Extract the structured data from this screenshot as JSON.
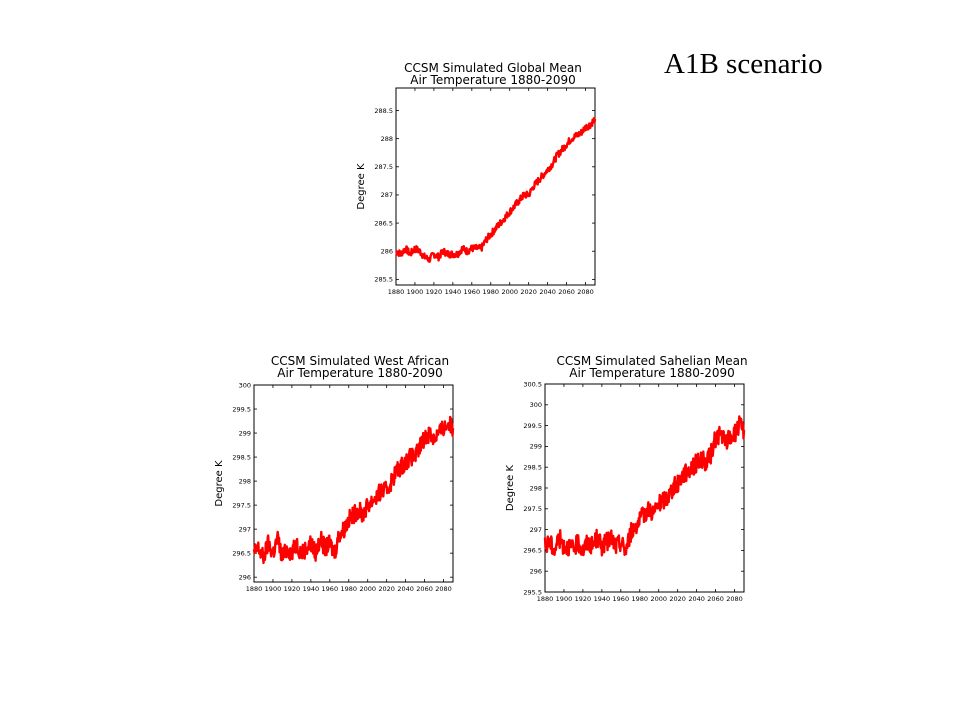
{
  "slide": {
    "title": "A1B scenario"
  },
  "chart_data": [
    {
      "type": "line",
      "title": "CCSM Simulated Global Mean",
      "subtitle": "Air Temperature 1880-2090",
      "xlabel": "",
      "ylabel": "Degree K",
      "xlim": [
        1880,
        2090
      ],
      "ylim": [
        285.4,
        288.9
      ],
      "xticks": [
        "1880",
        "1900",
        "1920",
        "1940",
        "1960",
        "1980",
        "2000",
        "2020",
        "2040",
        "2060",
        "2080"
      ],
      "yticks": [
        "285.5",
        "286",
        "286.5",
        "287",
        "287.5",
        "288",
        "288.5"
      ],
      "grid": false,
      "legend": "none",
      "series": [
        {
          "color": "#ff0000",
          "x": [
            1880,
            1885,
            1890,
            1895,
            1900,
            1905,
            1910,
            1915,
            1920,
            1925,
            1930,
            1935,
            1940,
            1945,
            1950,
            1955,
            1960,
            1965,
            1970,
            1975,
            1980,
            1985,
            1990,
            1995,
            2000,
            2005,
            2010,
            2015,
            2020,
            2025,
            2030,
            2035,
            2040,
            2045,
            2050,
            2055,
            2060,
            2065,
            2070,
            2075,
            2080,
            2085,
            2090
          ],
          "values": [
            286.0,
            285.95,
            286.05,
            285.95,
            286.05,
            286.0,
            285.9,
            285.85,
            285.95,
            285.9,
            286.0,
            285.95,
            285.95,
            285.95,
            286.05,
            286.0,
            286.05,
            286.05,
            286.05,
            286.2,
            286.3,
            286.4,
            286.5,
            286.6,
            286.7,
            286.8,
            286.9,
            287.0,
            287.0,
            287.15,
            287.25,
            287.35,
            287.45,
            287.55,
            287.7,
            287.8,
            287.9,
            288.0,
            288.05,
            288.1,
            288.2,
            288.25,
            288.35
          ]
        }
      ]
    },
    {
      "type": "line",
      "title": "CCSM Simulated West African",
      "subtitle": "Air Temperature 1880-2090",
      "xlabel": "",
      "ylabel": "Degree K",
      "xlim": [
        1880,
        2090
      ],
      "ylim": [
        295.9,
        300.0
      ],
      "xticks": [
        "1880",
        "1900",
        "1920",
        "1940",
        "1960",
        "1980",
        "2000",
        "2020",
        "2040",
        "2060",
        "2080"
      ],
      "yticks": [
        "296",
        "296.5",
        "297",
        "297.5",
        "298",
        "298.5",
        "299",
        "299.5",
        "300"
      ],
      "grid": false,
      "legend": "none",
      "series": [
        {
          "color": "#ff0000",
          "x": [
            1880,
            1885,
            1890,
            1895,
            1900,
            1905,
            1910,
            1915,
            1920,
            1925,
            1930,
            1935,
            1940,
            1945,
            1950,
            1955,
            1960,
            1965,
            1970,
            1975,
            1980,
            1985,
            1990,
            1995,
            2000,
            2005,
            2010,
            2015,
            2020,
            2025,
            2030,
            2035,
            2040,
            2045,
            2050,
            2055,
            2060,
            2065,
            2070,
            2075,
            2080,
            2085,
            2090
          ],
          "values": [
            296.5,
            296.6,
            296.4,
            296.7,
            296.5,
            296.8,
            296.4,
            296.6,
            296.5,
            296.7,
            296.5,
            296.6,
            296.7,
            296.5,
            296.8,
            296.6,
            296.7,
            296.5,
            296.9,
            297.0,
            297.2,
            297.3,
            297.4,
            297.3,
            297.5,
            297.6,
            297.7,
            297.8,
            297.8,
            298.0,
            298.2,
            298.3,
            298.4,
            298.5,
            298.5,
            298.7,
            298.9,
            299.0,
            298.9,
            299.0,
            299.1,
            299.2,
            299.1
          ]
        }
      ]
    },
    {
      "type": "line",
      "title": "CCSM Simulated Sahelian Mean",
      "subtitle": "Air Temperature 1880-2090",
      "xlabel": "",
      "ylabel": "Degree K",
      "xlim": [
        1880,
        2090
      ],
      "ylim": [
        295.5,
        300.5
      ],
      "xticks": [
        "1880",
        "1900",
        "1920",
        "1940",
        "1960",
        "1980",
        "2000",
        "2020",
        "2040",
        "2060",
        "2080"
      ],
      "yticks": [
        "295.5",
        "296",
        "296.5",
        "297",
        "297.5",
        "298",
        "298.5",
        "299",
        "299.5",
        "300",
        "300.5"
      ],
      "grid": false,
      "legend": "none",
      "series": [
        {
          "color": "#ff0000",
          "x": [
            1880,
            1885,
            1890,
            1895,
            1900,
            1905,
            1910,
            1915,
            1920,
            1925,
            1930,
            1935,
            1940,
            1945,
            1950,
            1955,
            1960,
            1965,
            1970,
            1975,
            1980,
            1985,
            1990,
            1995,
            2000,
            2005,
            2010,
            2015,
            2020,
            2025,
            2030,
            2035,
            2040,
            2045,
            2050,
            2055,
            2060,
            2065,
            2070,
            2075,
            2080,
            2085,
            2090
          ],
          "values": [
            296.6,
            296.7,
            296.5,
            296.8,
            296.6,
            296.6,
            296.5,
            296.7,
            296.5,
            296.7,
            296.6,
            296.8,
            296.6,
            296.7,
            296.8,
            296.6,
            296.7,
            296.5,
            296.9,
            297.1,
            297.2,
            297.4,
            297.5,
            297.4,
            297.6,
            297.7,
            297.8,
            298.0,
            298.1,
            298.3,
            298.4,
            298.5,
            298.6,
            298.7,
            298.6,
            298.8,
            299.2,
            299.3,
            299.1,
            299.2,
            299.3,
            299.5,
            299.4
          ]
        }
      ]
    }
  ]
}
